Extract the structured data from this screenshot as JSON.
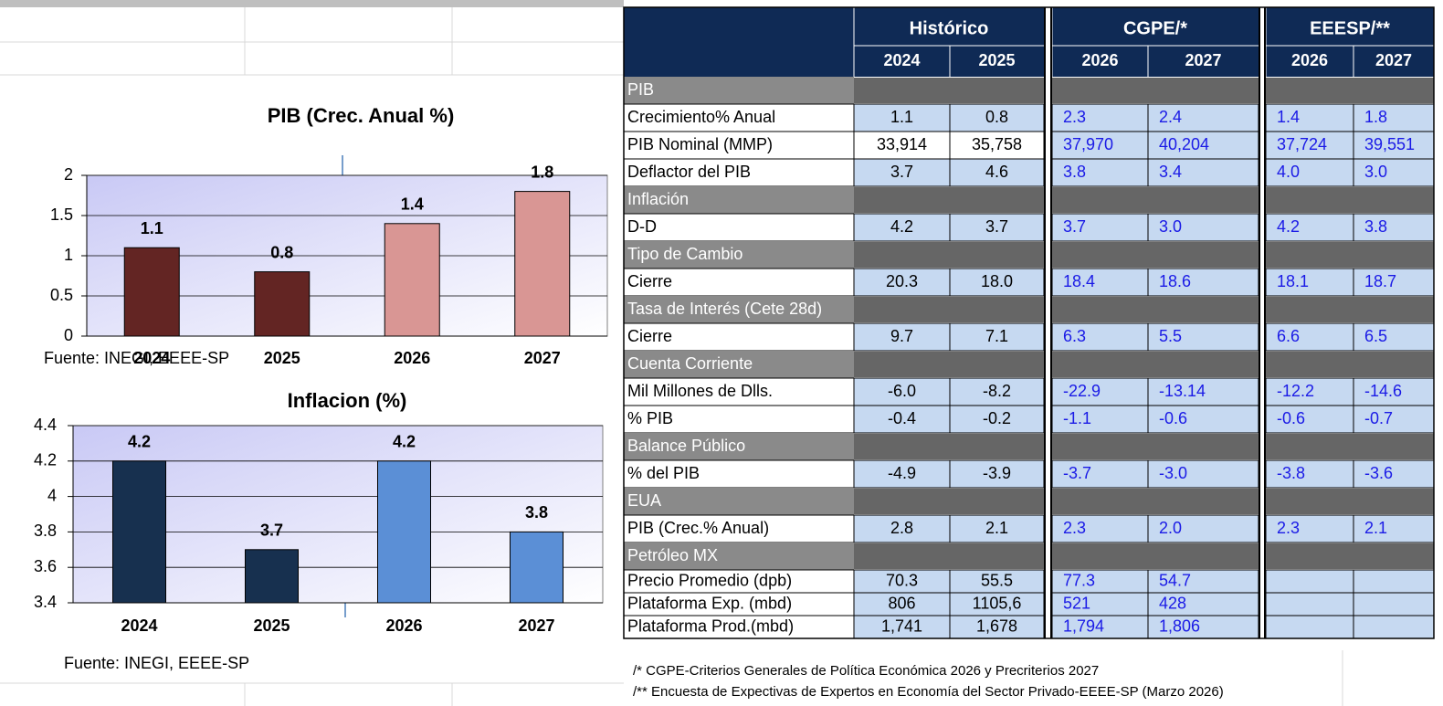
{
  "chart_data": [
    {
      "type": "bar",
      "title": "PIB (Crec. Anual %)",
      "categories": [
        "2024",
        "2025",
        "2026",
        "2027"
      ],
      "values": [
        1.1,
        0.8,
        1.4,
        1.8
      ],
      "colors": [
        "#632523",
        "#632523",
        "#d99694",
        "#d99694"
      ],
      "ylim": [
        0,
        2
      ],
      "yticks": [
        0,
        0.5,
        1,
        1.5,
        2
      ],
      "grid": true,
      "source": "Fuente: INEGI, EEEE-SP"
    },
    {
      "type": "bar",
      "title": "Inflacion (%)",
      "categories": [
        "2024",
        "2025",
        "2026",
        "2027"
      ],
      "values": [
        4.2,
        3.7,
        4.2,
        3.8
      ],
      "colors": [
        "#17304f",
        "#17304f",
        "#5b8fd6",
        "#5b8fd6"
      ],
      "ylim": [
        3.4,
        4.4
      ],
      "yticks": [
        3.4,
        3.6,
        3.8,
        4,
        4.2,
        4.4
      ],
      "grid": true,
      "source": "Fuente: INEGI, EEEE-SP"
    }
  ],
  "table": {
    "groups": [
      "Histórico",
      "CGPE/*",
      "EEESP/**"
    ],
    "years": [
      "2024",
      "2025",
      "2026",
      "2027",
      "2026",
      "2027"
    ],
    "rows": [
      {
        "label": "PIB",
        "section": true
      },
      {
        "label": "Crecimiento%  Anual",
        "values": [
          "1.1",
          "0.8",
          "2.3",
          "2.4",
          "1.4",
          "1.8"
        ]
      },
      {
        "label": "PIB Nominal (MMP)",
        "values": [
          "33,914",
          "35,758",
          "37,970",
          "40,204",
          "37,724",
          "39,551"
        ]
      },
      {
        "label": "Deflactor del PIB",
        "values": [
          "3.7",
          "4.6",
          "3.8",
          "3.4",
          "4.0",
          "3.0"
        ]
      },
      {
        "label": "Inflación",
        "section": true
      },
      {
        "label": "D-D",
        "values": [
          "4.2",
          "3.7",
          "3.7",
          "3.0",
          "4.2",
          "3.8"
        ]
      },
      {
        "label": "Tipo de Cambio",
        "section": true
      },
      {
        "label": "Cierre",
        "values": [
          "20.3",
          "18.0",
          "18.4",
          "18.6",
          "18.1",
          "18.7"
        ]
      },
      {
        "label": "Tasa de Interés (Cete 28d)",
        "section": true
      },
      {
        "label": "Cierre",
        "values": [
          "9.7",
          "7.1",
          "6.3",
          "5.5",
          "6.6",
          "6.5"
        ]
      },
      {
        "label": "Cuenta Corriente",
        "section": true
      },
      {
        "label": "Mil Millones de Dlls.",
        "values": [
          "-6.0",
          "-8.2",
          "-22.9",
          "-13.14",
          "-12.2",
          "-14.6"
        ]
      },
      {
        "label": "% PIB",
        "values": [
          "-0.4",
          "-0.2",
          "-1.1",
          "-0.6",
          "-0.6",
          "-0.7"
        ]
      },
      {
        "label": "Balance Público",
        "section": true
      },
      {
        "label": "% del PIB",
        "values": [
          "-4.9",
          "-3.9",
          "-3.7",
          "-3.0",
          "-3.8",
          "-3.6"
        ]
      },
      {
        "label": "EUA",
        "section": true
      },
      {
        "label": "PIB (Crec.% Anual)",
        "values": [
          "2.8",
          "2.1",
          "2.3",
          "2.0",
          "2.3",
          "2.1"
        ]
      },
      {
        "label": "Petróleo MX",
        "section": true
      },
      {
        "label": "Precio Promedio (dpb)",
        "values": [
          "70.3",
          "55.5",
          "77.3",
          "54.7",
          null,
          null
        ]
      },
      {
        "label": "Plataforma Exp. (mbd)",
        "values": [
          "806",
          "1105,6",
          "521",
          "428",
          null,
          null
        ]
      },
      {
        "label": "Plataforma Prod.(mbd)",
        "values": [
          "1,741",
          "1,678",
          "1,794",
          "1,806",
          null,
          null
        ]
      }
    ],
    "notes": [
      "/*  CGPE-Criterios Generales de Política Económica  2026 y Precriterios 2027",
      "/** Encuesta de Expectivas de Expertos en Economía del Sector Privado-EEEE-SP (Marzo 2026)"
    ]
  }
}
